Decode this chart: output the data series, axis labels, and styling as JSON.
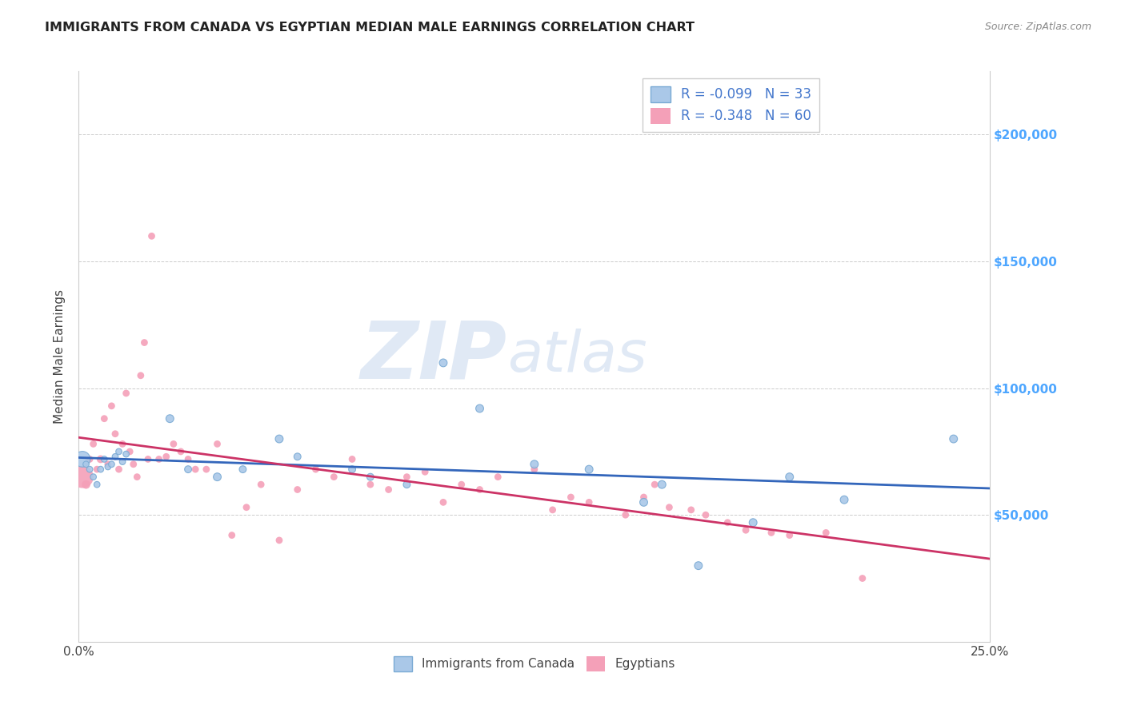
{
  "title": "IMMIGRANTS FROM CANADA VS EGYPTIAN MEDIAN MALE EARNINGS CORRELATION CHART",
  "source": "Source: ZipAtlas.com",
  "ylabel": "Median Male Earnings",
  "xmin": 0.0,
  "xmax": 0.25,
  "ymin": 0,
  "ymax": 225000,
  "ytick_values": [
    0,
    50000,
    100000,
    150000,
    200000
  ],
  "xtick_values": [
    0.0,
    0.05,
    0.1,
    0.15,
    0.2,
    0.25
  ],
  "xtick_labels": [
    "0.0%",
    "",
    "",
    "",
    "",
    "25.0%"
  ],
  "right_ytick_labels": [
    "$200,000",
    "$150,000",
    "$100,000",
    "$50,000"
  ],
  "right_ytick_values": [
    200000,
    150000,
    100000,
    50000
  ],
  "right_axis_color": "#4da6ff",
  "legend_r1": "R = -0.099",
  "legend_n1": "N = 33",
  "legend_r2": "R = -0.348",
  "legend_n2": "N = 60",
  "legend_color": "#4477cc",
  "watermark_zip": "ZIP",
  "watermark_atlas": "atlas",
  "background_color": "#ffffff",
  "grid_color": "#cccccc",
  "title_color": "#222222",
  "series_canada": {
    "color": "#aac8e8",
    "edge_color": "#7aaad4",
    "line_color": "#3366bb",
    "x": [
      0.001,
      0.002,
      0.003,
      0.004,
      0.005,
      0.006,
      0.007,
      0.008,
      0.009,
      0.01,
      0.011,
      0.012,
      0.013,
      0.025,
      0.03,
      0.038,
      0.045,
      0.055,
      0.06,
      0.075,
      0.08,
      0.09,
      0.1,
      0.11,
      0.125,
      0.14,
      0.155,
      0.16,
      0.17,
      0.185,
      0.195,
      0.21,
      0.24
    ],
    "y": [
      72000,
      70000,
      68000,
      65000,
      62000,
      68000,
      72000,
      69000,
      70000,
      73000,
      75000,
      71000,
      74000,
      88000,
      68000,
      65000,
      68000,
      80000,
      73000,
      68000,
      65000,
      62000,
      110000,
      92000,
      70000,
      68000,
      55000,
      62000,
      30000,
      47000,
      65000,
      56000,
      80000
    ],
    "sizes": [
      200,
      30,
      30,
      30,
      30,
      30,
      30,
      30,
      30,
      30,
      30,
      30,
      30,
      50,
      40,
      50,
      40,
      50,
      40,
      40,
      40,
      40,
      50,
      50,
      50,
      50,
      50,
      50,
      50,
      50,
      50,
      50,
      50
    ]
  },
  "series_egypt": {
    "color": "#f4a0b8",
    "edge_color": "none",
    "line_color": "#cc3366",
    "x": [
      0.001,
      0.002,
      0.003,
      0.004,
      0.005,
      0.006,
      0.007,
      0.008,
      0.009,
      0.01,
      0.011,
      0.012,
      0.013,
      0.014,
      0.015,
      0.016,
      0.017,
      0.018,
      0.019,
      0.02,
      0.022,
      0.024,
      0.026,
      0.028,
      0.03,
      0.032,
      0.035,
      0.038,
      0.042,
      0.046,
      0.05,
      0.055,
      0.06,
      0.065,
      0.07,
      0.075,
      0.08,
      0.085,
      0.09,
      0.095,
      0.1,
      0.105,
      0.11,
      0.115,
      0.125,
      0.13,
      0.135,
      0.14,
      0.15,
      0.155,
      0.158,
      0.162,
      0.168,
      0.172,
      0.178,
      0.183,
      0.19,
      0.195,
      0.205,
      0.215
    ],
    "y": [
      65000,
      62000,
      72000,
      78000,
      68000,
      72000,
      88000,
      70000,
      93000,
      82000,
      68000,
      78000,
      98000,
      75000,
      70000,
      65000,
      105000,
      118000,
      72000,
      160000,
      72000,
      73000,
      78000,
      75000,
      72000,
      68000,
      68000,
      78000,
      42000,
      53000,
      62000,
      40000,
      60000,
      68000,
      65000,
      72000,
      62000,
      60000,
      65000,
      67000,
      55000,
      62000,
      60000,
      65000,
      68000,
      52000,
      57000,
      55000,
      50000,
      57000,
      62000,
      53000,
      52000,
      50000,
      47000,
      44000,
      43000,
      42000,
      43000,
      25000
    ],
    "sizes": [
      400,
      60,
      40,
      40,
      40,
      50,
      40,
      40,
      40,
      40,
      40,
      40,
      40,
      40,
      40,
      40,
      40,
      40,
      40,
      40,
      40,
      40,
      40,
      40,
      40,
      40,
      40,
      40,
      40,
      40,
      40,
      40,
      40,
      40,
      40,
      40,
      40,
      40,
      40,
      40,
      40,
      40,
      40,
      40,
      40,
      40,
      40,
      40,
      40,
      40,
      40,
      40,
      40,
      40,
      40,
      40,
      40,
      40,
      40,
      40
    ]
  }
}
